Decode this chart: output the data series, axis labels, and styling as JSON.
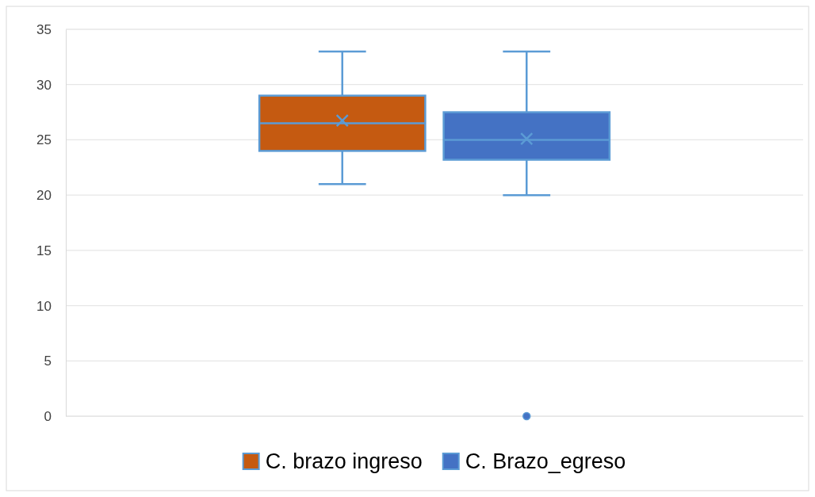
{
  "chart_data": {
    "type": "box",
    "categories": [
      null
    ],
    "series": [
      {
        "name": "C. brazo ingreso",
        "color": "#c55a11",
        "boxes": [
          {
            "low": 21,
            "q1": 24,
            "median": 26.5,
            "q3": 29,
            "high": 33,
            "mean": 26.75
          }
        ]
      },
      {
        "name": "C. Brazo_egreso",
        "color": "#4472c4",
        "boxes": [
          {
            "low": 20,
            "q1": 23.2,
            "median": 25,
            "q3": 27.5,
            "high": 33,
            "mean": 25.1,
            "outliers": [
              0
            ]
          }
        ]
      }
    ],
    "ylim": [
      0,
      35
    ],
    "yticks": [
      0,
      5,
      10,
      15,
      20,
      25,
      30,
      35
    ],
    "grid": "y",
    "legend": "bottom"
  }
}
